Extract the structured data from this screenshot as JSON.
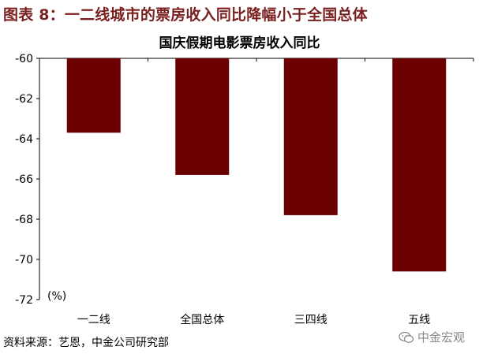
{
  "figure_title": "图表 8：一二线城市的票房收入同比降幅小于全国总体",
  "source_note": "资料来源：艺恩，中金公司研究部",
  "watermark": {
    "text": "中金宏观",
    "icon": "wechat-icon"
  },
  "colors": {
    "bar": "#6b0000",
    "title": "#7a1f1f"
  },
  "chart_data": {
    "type": "bar",
    "title": "国庆假期电影票房收入同比",
    "xlabel": "",
    "ylabel": "(%)",
    "categories": [
      "一二线",
      "全国总体",
      "三四线",
      "五线"
    ],
    "values": [
      -63.7,
      -65.8,
      -67.8,
      -70.6
    ],
    "ylim": [
      -72,
      -60
    ],
    "yticks": [
      "-60",
      "-62",
      "-64",
      "-66",
      "-68",
      "-70",
      "-72"
    ],
    "ytick_values": [
      -60,
      -62,
      -64,
      -66,
      -68,
      -70,
      -72
    ],
    "grid": false,
    "legend": "none"
  }
}
